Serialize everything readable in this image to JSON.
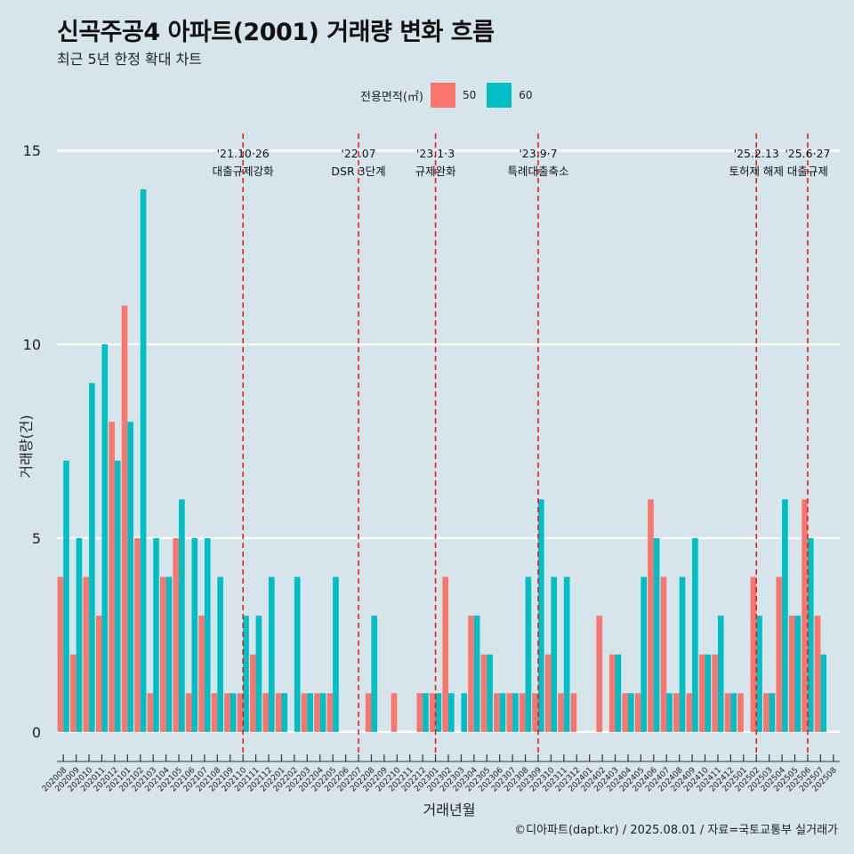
{
  "chart_data": {
    "type": "bar",
    "title": "신곡주공4 아파트(2001) 거래량 변화 흐름",
    "subtitle": "최근 5년 한정 확대 차트",
    "xlabel": "거래년월",
    "ylabel": "거래량(건)",
    "caption": "©디아파트(dapt.kr) / 2025.08.01 / 자료=국토교통부 실거래가",
    "legend": {
      "title": "전용면적(㎡)",
      "placement": "top"
    },
    "ylim": [
      -0.6,
      15.6
    ],
    "yticks": [
      0,
      5,
      10,
      15
    ],
    "ytick_labels": [
      "0",
      "5",
      "10",
      "15"
    ],
    "categories": [
      "202008",
      "202009",
      "202010",
      "202011",
      "202012",
      "202101",
      "202102",
      "202103",
      "202104",
      "202105",
      "202106",
      "202107",
      "202108",
      "202109",
      "202110",
      "202111",
      "202112",
      "202201",
      "202202",
      "202203",
      "202204",
      "202205",
      "202206",
      "202207",
      "202208",
      "202209",
      "202210",
      "202211",
      "202212",
      "202301",
      "202302",
      "202303",
      "202304",
      "202305",
      "202306",
      "202307",
      "202308",
      "202309",
      "202310",
      "202311",
      "202312",
      "202401",
      "202402",
      "202403",
      "202404",
      "202405",
      "202406",
      "202407",
      "202408",
      "202409",
      "202410",
      "202411",
      "202412",
      "202501",
      "202502",
      "202503",
      "202504",
      "202505",
      "202506",
      "202507",
      "202508"
    ],
    "series": [
      {
        "name": "50",
        "color": "#f8766d",
        "values": [
          4,
          2,
          4,
          3,
          8,
          11,
          5,
          1,
          4,
          5,
          1,
          3,
          1,
          1,
          1,
          2,
          1,
          1,
          0,
          1,
          1,
          1,
          0,
          0,
          1,
          0,
          1,
          0,
          1,
          1,
          4,
          0,
          3,
          2,
          1,
          1,
          1,
          1,
          2,
          1,
          1,
          0,
          3,
          2,
          1,
          1,
          6,
          4,
          1,
          1,
          2,
          2,
          1,
          1,
          4,
          1,
          4,
          3,
          6,
          3,
          0
        ]
      },
      {
        "name": "60",
        "color": "#00bfc4",
        "values": [
          7,
          5,
          9,
          10,
          7,
          8,
          14,
          5,
          4,
          6,
          5,
          5,
          4,
          1,
          3,
          3,
          4,
          1,
          4,
          1,
          1,
          4,
          0,
          0,
          3,
          0,
          0,
          0,
          1,
          1,
          1,
          1,
          3,
          2,
          1,
          1,
          4,
          6,
          4,
          4,
          0,
          0,
          0,
          2,
          1,
          4,
          5,
          1,
          4,
          5,
          2,
          3,
          1,
          0,
          3,
          1,
          6,
          3,
          5,
          2,
          0
        ]
      }
    ],
    "events": [
      {
        "category": "202110",
        "date": "'21.10·26",
        "label": "대출규제강화"
      },
      {
        "category": "202207",
        "date": "'22.07",
        "label": "DSR 3단계"
      },
      {
        "category": "202301",
        "date": "'23.1·3",
        "label": "규제완화"
      },
      {
        "category": "202309",
        "date": "'23.9·7",
        "label": "특례대출축소"
      },
      {
        "category": "202502",
        "date": "'25.2.13",
        "label": "토허제 해제"
      },
      {
        "category": "202506",
        "date": "'25.6·27",
        "label": "대출규제"
      }
    ]
  }
}
